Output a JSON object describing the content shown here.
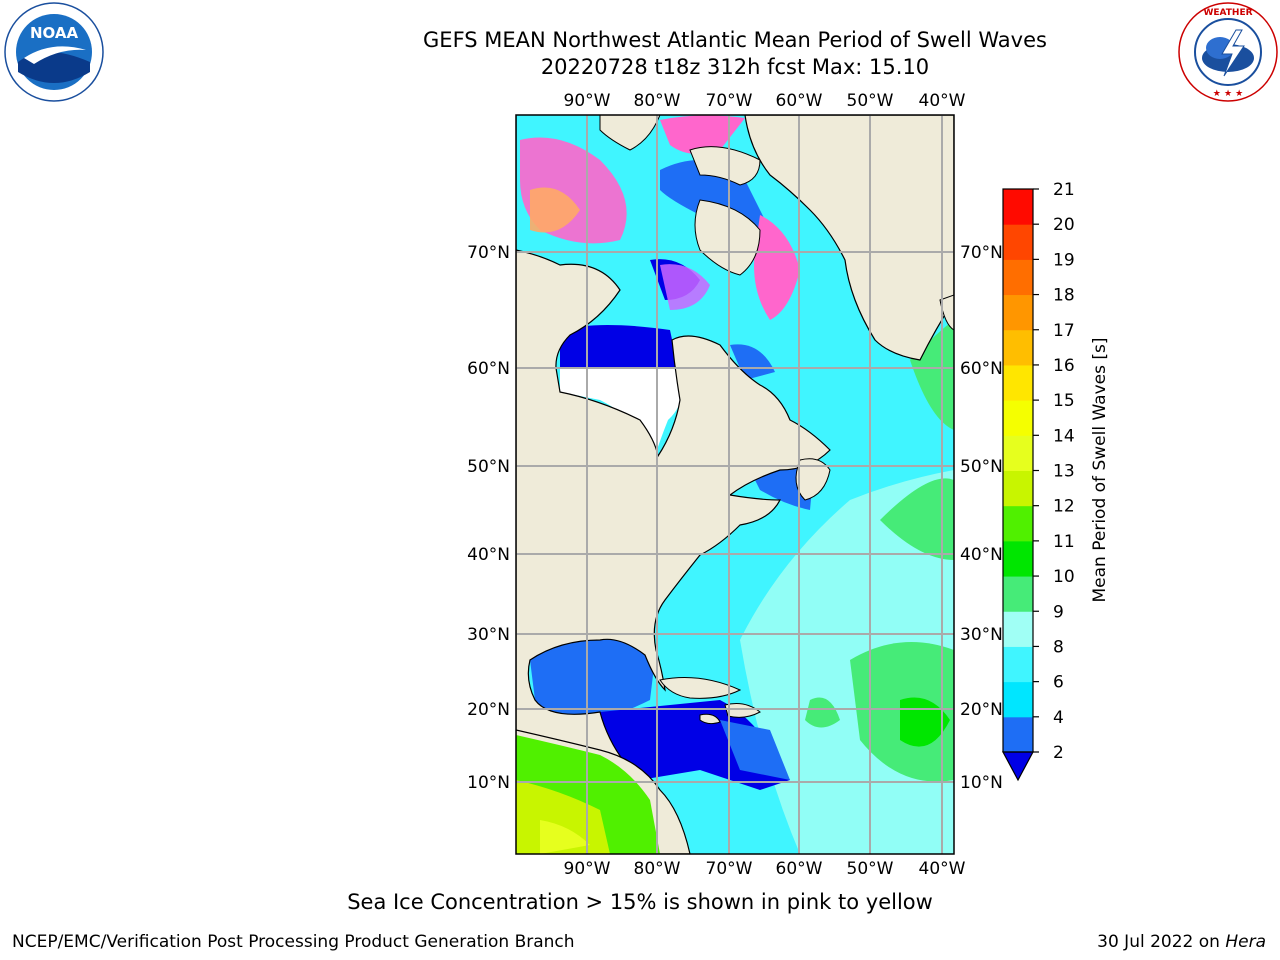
{
  "header": {
    "title_line1": "GEFS MEAN Northwest Atlantic Mean Period of Swell Waves",
    "title_line2": "20220728 t18z 312h fcst   Max: 15.10"
  },
  "logos": {
    "left": "noaa-logo",
    "right": "nws-logo"
  },
  "map": {
    "lon_ticks": [
      "90°W",
      "80°W",
      "70°W",
      "60°W",
      "50°W",
      "40°W"
    ],
    "lat_ticks": [
      "70°N",
      "60°N",
      "50°N",
      "40°N",
      "30°N",
      "20°N",
      "10°N"
    ],
    "land_color": "#efebd9",
    "ice_region_color": "#ffffff",
    "grid_color": "#aaaaaa"
  },
  "colorbar": {
    "label": "Mean Period of Swell Waves [s]",
    "ticks": [
      "2",
      "4",
      "6",
      "8",
      "9",
      "10",
      "11",
      "12",
      "13",
      "14",
      "15",
      "16",
      "17",
      "18",
      "19",
      "20",
      "21"
    ],
    "colors": [
      "#1e6ef5",
      "#00e6ff",
      "#40f5ff",
      "#a0fff5",
      "#46eb78",
      "#00e600",
      "#50f000",
      "#c8f500",
      "#e6ff1e",
      "#f5ff00",
      "#ffe600",
      "#ffbe00",
      "#ff9600",
      "#ff6e00",
      "#ff4600",
      "#ff0a00"
    ],
    "under_color": "#0000e6"
  },
  "footnote": "Sea Ice Concentration > 15% is shown in pink to yellow",
  "footer": {
    "left": "NCEP/EMC/Verification Post Processing Product Generation Branch",
    "right_date": "30 Jul 2022 on ",
    "right_host": "Hera"
  }
}
